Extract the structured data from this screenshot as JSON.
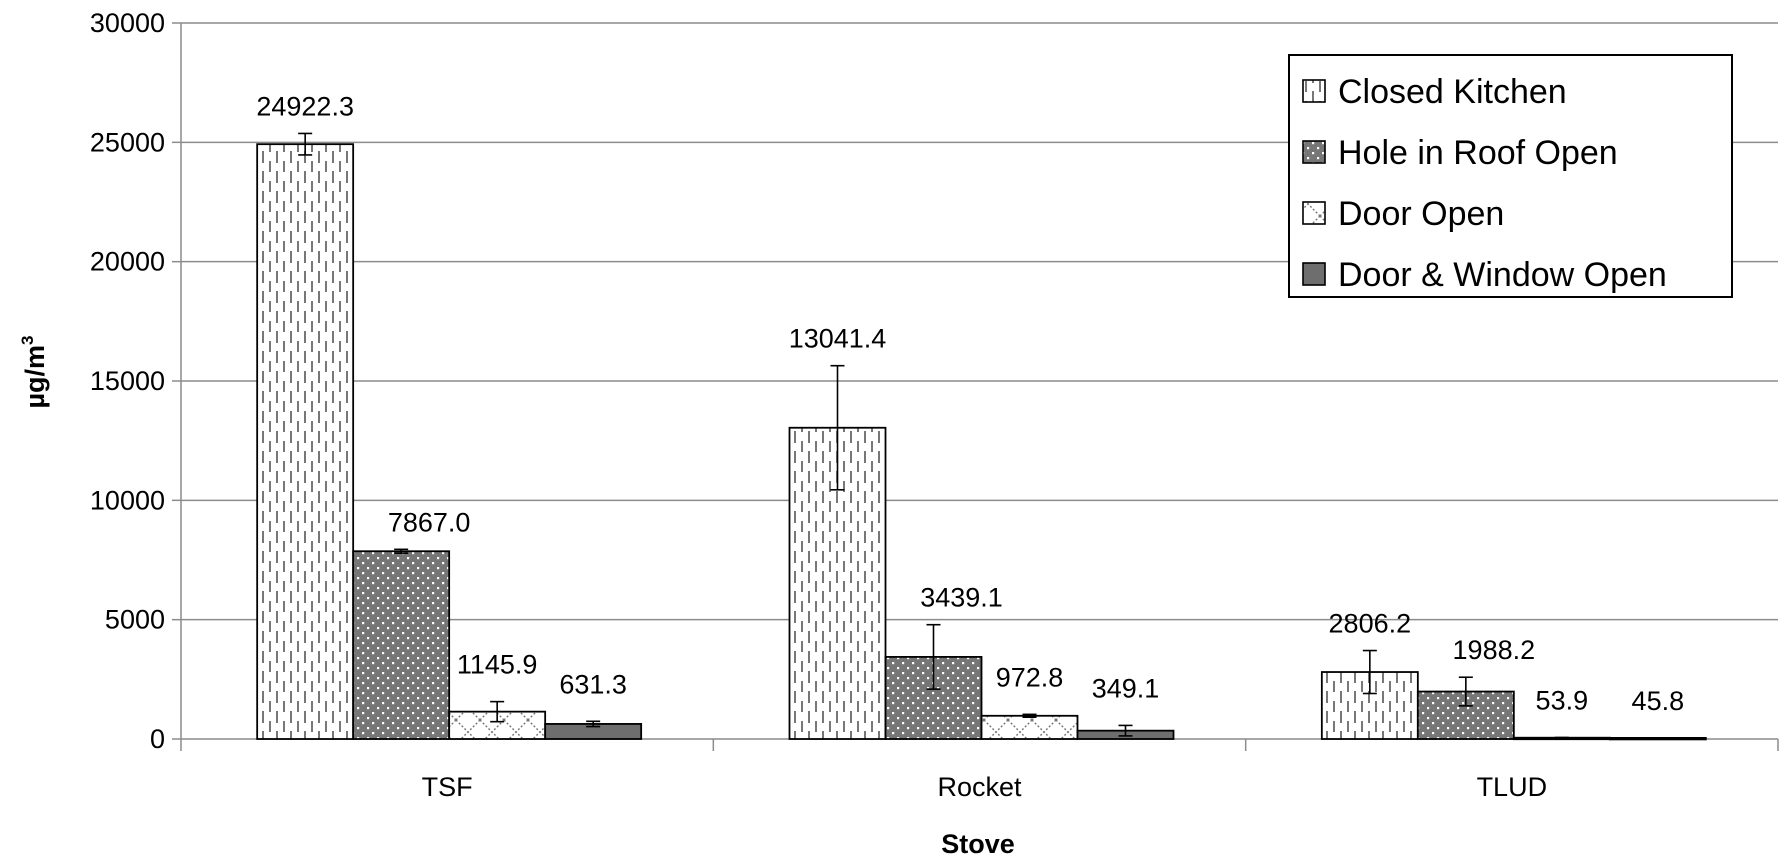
{
  "chart_data": {
    "type": "bar",
    "title": "",
    "xlabel": "Stove",
    "ylabel_main": "µg/m",
    "ylabel_sup": "3",
    "categories": [
      "TSF",
      "Rocket",
      "TLUD"
    ],
    "ylim": [
      0,
      30000
    ],
    "yticks": [
      0,
      5000,
      10000,
      15000,
      20000,
      25000,
      30000
    ],
    "ytick_labels": [
      "0",
      "5000",
      "10000",
      "15000",
      "20000",
      "25000",
      "30000"
    ],
    "grid": true,
    "legend_position": "top-right",
    "series": [
      {
        "name": "Closed Kitchen",
        "pattern": "dashed-vertical",
        "values": [
          24922.3,
          13041.4,
          2806.2
        ],
        "labels": [
          "24922.3",
          "13041.4",
          "2806.2"
        ],
        "error": [
          450,
          2600,
          900
        ]
      },
      {
        "name": "Hole in Roof Open",
        "pattern": "dotted-dark",
        "values": [
          7867.0,
          3439.1,
          1988.2
        ],
        "labels": [
          "7867.0",
          "3439.1",
          "1988.2"
        ],
        "error": [
          80,
          1350,
          600
        ]
      },
      {
        "name": "Door Open",
        "pattern": "crosshatch",
        "values": [
          1145.9,
          972.8,
          53.9
        ],
        "labels": [
          "1145.9",
          "972.8",
          "53.9"
        ],
        "error": [
          420,
          60,
          10
        ]
      },
      {
        "name": "Door & Window Open",
        "pattern": "solid-gray",
        "values": [
          631.3,
          349.1,
          45.8
        ],
        "labels": [
          "631.3",
          "349.1",
          "45.8"
        ],
        "error": [
          110,
          220,
          5
        ]
      }
    ],
    "colors": {
      "grid": "#8c8c8c",
      "axis": "#8c8c8c",
      "solid_gray": "#6e6e6e",
      "dot_fill": "#767676"
    }
  }
}
